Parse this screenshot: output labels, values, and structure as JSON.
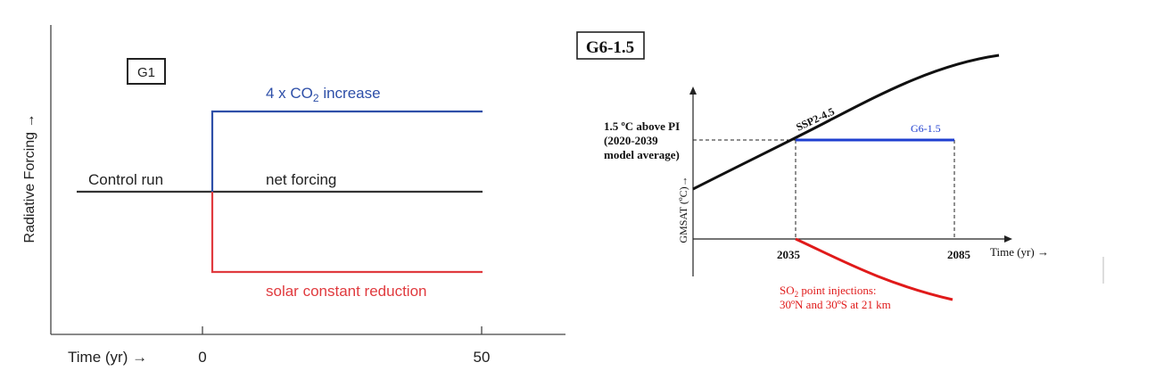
{
  "colors": {
    "black": "#1a1a1a",
    "blue": "#2e4fa8",
    "red": "#e03a3e",
    "blue_right": "#1f3fd0",
    "red_right": "#e01a1a"
  },
  "left_panel": {
    "box_label": "G1",
    "y_axis_label": "Radiative Forcing →",
    "x_axis_label": "Time (yr) →",
    "x_ticks": [
      "0",
      "50"
    ],
    "co2_label_prefix": "4 x CO",
    "co2_label_sub": "2",
    "co2_label_suffix": " increase",
    "control_label": "Control run",
    "net_label": "net forcing",
    "solar_label": "solar constant reduction"
  },
  "right_panel": {
    "box_label": "G6-1.5",
    "y_axis_label": "GMSAT (ºC)→",
    "x_axis_label": "Time (yr) →",
    "x_ticks": [
      "2035",
      "2085"
    ],
    "threshold_line1": "1.5 ºC above PI",
    "threshold_line2": "(2020-2039",
    "threshold_line3": "model average)",
    "ssp_label": "SSP2-4.5",
    "g6_label": "G6-1.5",
    "so2_prefix": "SO",
    "so2_sub": "2",
    "so2_suffix": " point injections:",
    "so2_line2": "30ºN and 30ºS at 21 km"
  }
}
